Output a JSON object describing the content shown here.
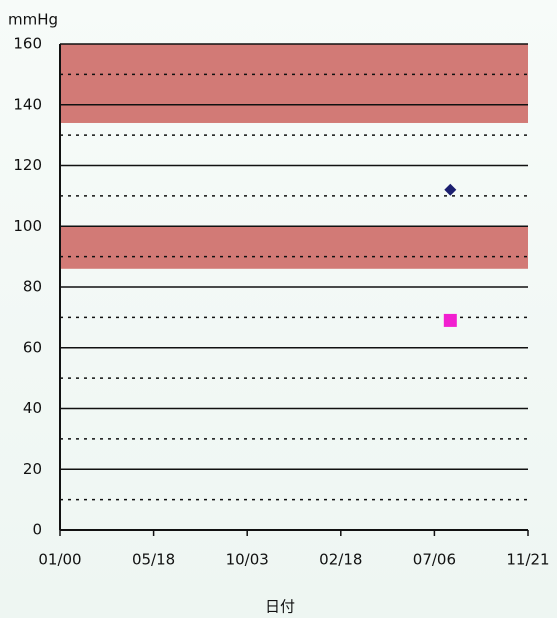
{
  "chart_data": {
    "type": "scatter",
    "y_label": "mmHg",
    "x_label": "日付",
    "xlim": [
      0,
      5
    ],
    "xticks": [
      {
        "value": 0,
        "label": "01/00"
      },
      {
        "value": 1,
        "label": "05/18"
      },
      {
        "value": 2,
        "label": "10/03"
      },
      {
        "value": 3,
        "label": "02/18"
      },
      {
        "value": 4,
        "label": "07/06"
      },
      {
        "value": 5,
        "label": "11/21"
      }
    ],
    "ylim": [
      0,
      160
    ],
    "yticks": [
      0,
      20,
      40,
      60,
      80,
      100,
      120,
      140,
      160
    ],
    "minor_yticks": [
      10,
      30,
      50,
      70,
      90,
      110,
      130,
      150
    ],
    "grid": true,
    "bands": [
      {
        "from": 134,
        "to": 160,
        "color": "#d27a76"
      },
      {
        "from": 86,
        "to": 100,
        "color": "#d27a76"
      }
    ],
    "series": [
      {
        "marker": "diamond",
        "color": "#1b1f70",
        "x": [
          4.17
        ],
        "values": [
          112
        ]
      },
      {
        "marker": "square",
        "color": "#f21fd0",
        "x": [
          4.17
        ],
        "values": [
          69
        ]
      }
    ]
  }
}
